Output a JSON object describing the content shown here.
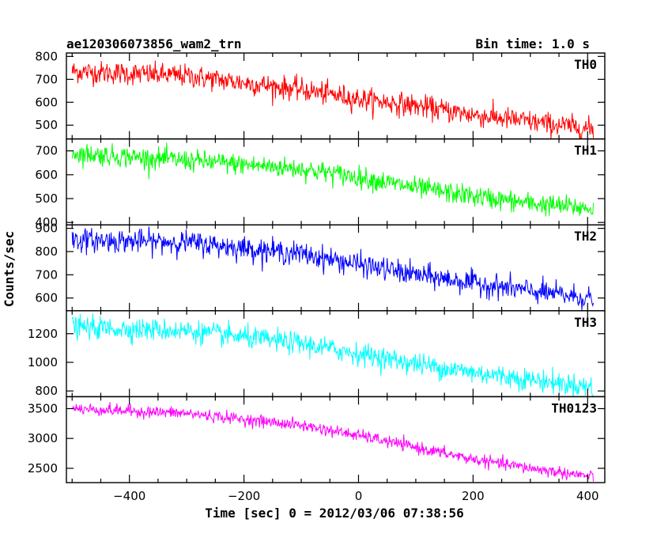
{
  "header": {
    "title": "ae120306073856_wam2_trn",
    "bin_time": "Bin time: 1.0 s"
  },
  "chart_data": {
    "type": "line",
    "title": "ae120306073856_wam2_trn",
    "subtitle": "Bin time: 1.0 s",
    "xlabel": "Time [sec] 0 = 2012/03/06 07:38:56",
    "ylabel": "Counts/sec",
    "xlim": [
      -510,
      430
    ],
    "x_ticks": [
      -400,
      -200,
      0,
      200,
      400
    ],
    "x_tick_labels": [
      "−400",
      "−200",
      "0",
      "200",
      "400"
    ],
    "x_range_data": [
      -500,
      410
    ],
    "bin_time_s": 1.0,
    "grid": false,
    "panels": [
      {
        "name": "TH0",
        "color": "#ff0000",
        "ylim": [
          440,
          815
        ],
        "yticks": [
          500,
          600,
          700,
          800
        ],
        "trend": {
          "x": [
            -500,
            -300,
            -100,
            0,
            100,
            200,
            300,
            400,
            410
          ],
          "y": [
            735,
            715,
            655,
            615,
            585,
            545,
            515,
            485,
            483
          ]
        },
        "noise_amplitude": 45
      },
      {
        "name": "TH1",
        "color": "#00ff00",
        "ylim": [
          390,
          750
        ],
        "yticks": [
          400,
          500,
          600,
          700
        ],
        "trend": {
          "x": [
            -500,
            -300,
            -100,
            0,
            100,
            200,
            300,
            400,
            410
          ],
          "y": [
            690,
            660,
            625,
            590,
            545,
            510,
            480,
            460,
            458
          ]
        },
        "noise_amplitude": 40
      },
      {
        "name": "TH2",
        "color": "#0000ff",
        "ylim": [
          545,
          915
        ],
        "yticks": [
          600,
          700,
          800,
          900
        ],
        "trend": {
          "x": [
            -500,
            -300,
            -100,
            0,
            100,
            200,
            300,
            400,
            410
          ],
          "y": [
            850,
            840,
            790,
            745,
            700,
            665,
            630,
            600,
            598
          ]
        },
        "noise_amplitude": 45
      },
      {
        "name": "TH3",
        "color": "#00ffff",
        "ylim": [
          760,
          1360
        ],
        "yticks": [
          800,
          1000,
          1200
        ],
        "trend": {
          "x": [
            -500,
            -300,
            -100,
            0,
            100,
            200,
            300,
            400,
            410
          ],
          "y": [
            1245,
            1220,
            1130,
            1060,
            990,
            930,
            880,
            830,
            828
          ]
        },
        "noise_amplitude": 70
      },
      {
        "name": "TH0123",
        "color": "#ff00ff",
        "ylim": [
          2260,
          3700
        ],
        "yticks": [
          2500,
          3000,
          3500
        ],
        "trend": {
          "x": [
            -500,
            -300,
            -100,
            0,
            100,
            200,
            300,
            400,
            410
          ],
          "y": [
            3500,
            3420,
            3220,
            3050,
            2850,
            2650,
            2500,
            2370,
            2365
          ]
        },
        "noise_amplitude": 90
      }
    ]
  }
}
